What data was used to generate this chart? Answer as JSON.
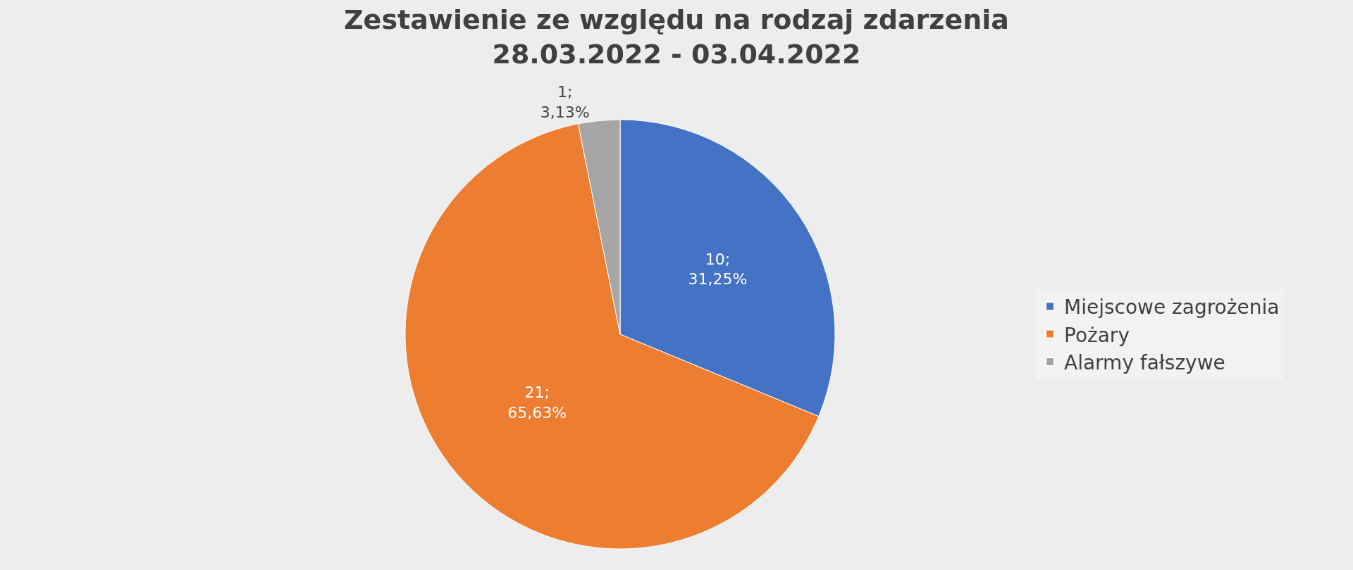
{
  "chart_data": {
    "type": "pie",
    "title": "Zestawienie ze względu na rodzaj zdarzenia\n28.03.2022 - 03.04.2022",
    "categories": [
      "Miejscowe zagrożenia",
      "Pożary",
      "Alarmy fałszywe"
    ],
    "values": [
      10,
      21,
      1
    ],
    "colors": [
      "#4472c4",
      "#ed7d31",
      "#a5a5a5"
    ],
    "value_labels": [
      "10;\n31,25%",
      "21;\n65,63%",
      "1;\n3,13%"
    ],
    "legend": "right"
  }
}
